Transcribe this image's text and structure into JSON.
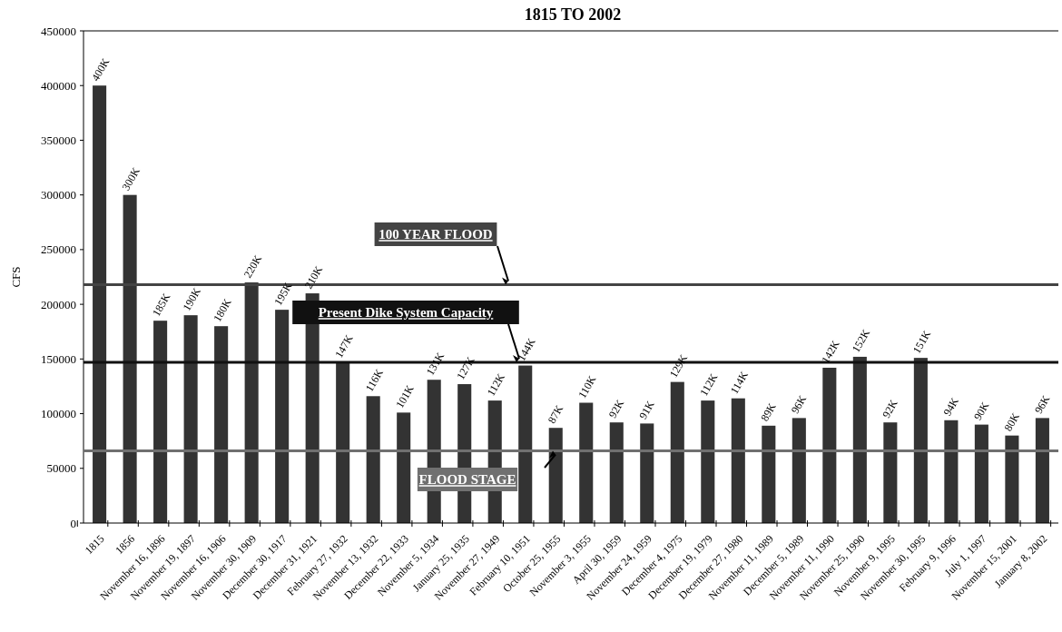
{
  "chart_data": {
    "type": "bar",
    "title": "1815 TO 2002",
    "ylabel": "CFS",
    "categories": [
      "1815",
      "1856",
      "November 16, 1896",
      "November 19, 1897",
      "November 16, 1906",
      "November 30, 1909",
      "December 30, 1917",
      "December 31, 1921",
      "February 27, 1932",
      "November 13, 1932",
      "December 22, 1933",
      "November 5, 1934",
      "January 25, 1935",
      "November 27, 1949",
      "February 10, 1951",
      "October 25, 1955",
      "November 3, 1955",
      "April 30, 1959",
      "November 24, 1959",
      "December 4, 1975",
      "December 19, 1979",
      "December 27, 1980",
      "November 11, 1989",
      "December 5, 1989",
      "November 11, 1990",
      "November 25, 1990",
      "November 9, 1995",
      "November 30, 1995",
      "February 9, 1996",
      "July 1, 1997",
      "November 15, 2001",
      "January 8, 2002"
    ],
    "values": [
      400000,
      300000,
      185000,
      190000,
      180000,
      220000,
      195000,
      210000,
      147000,
      116000,
      101000,
      131000,
      127000,
      112000,
      144000,
      87000,
      110000,
      92000,
      91000,
      129000,
      112000,
      114000,
      89000,
      96000,
      142000,
      152000,
      92000,
      151000,
      94000,
      90000,
      80000,
      96000
    ],
    "value_labels": [
      "400K",
      "300K",
      "185K",
      "190K",
      "180K",
      "220K",
      "195K",
      "210K",
      "147K",
      "116K",
      "101K",
      "131K",
      "127K",
      "112K",
      "144K",
      "87K",
      "110K",
      "92K",
      "91K",
      "129K",
      "112K",
      "114K",
      "89K",
      "96K",
      "142K",
      "152K",
      "92K",
      "151K",
      "94K",
      "90K",
      "80K",
      "96K"
    ],
    "color": "#333333",
    "ylim": [
      0,
      450000
    ],
    "yticks": [
      0,
      50000,
      100000,
      150000,
      200000,
      250000,
      300000,
      350000,
      400000,
      450000
    ],
    "ref_lines": [
      {
        "axis": "y",
        "value": 218000,
        "label": "100 YEAR FLOOD",
        "color": "#444444"
      },
      {
        "axis": "y",
        "value": 147000,
        "label": "Present Dike System Capacity",
        "color": "#111111"
      },
      {
        "axis": "y",
        "value": 66000,
        "label": "FLOOD STAGE",
        "color": "#707070"
      }
    ],
    "grid": false
  }
}
